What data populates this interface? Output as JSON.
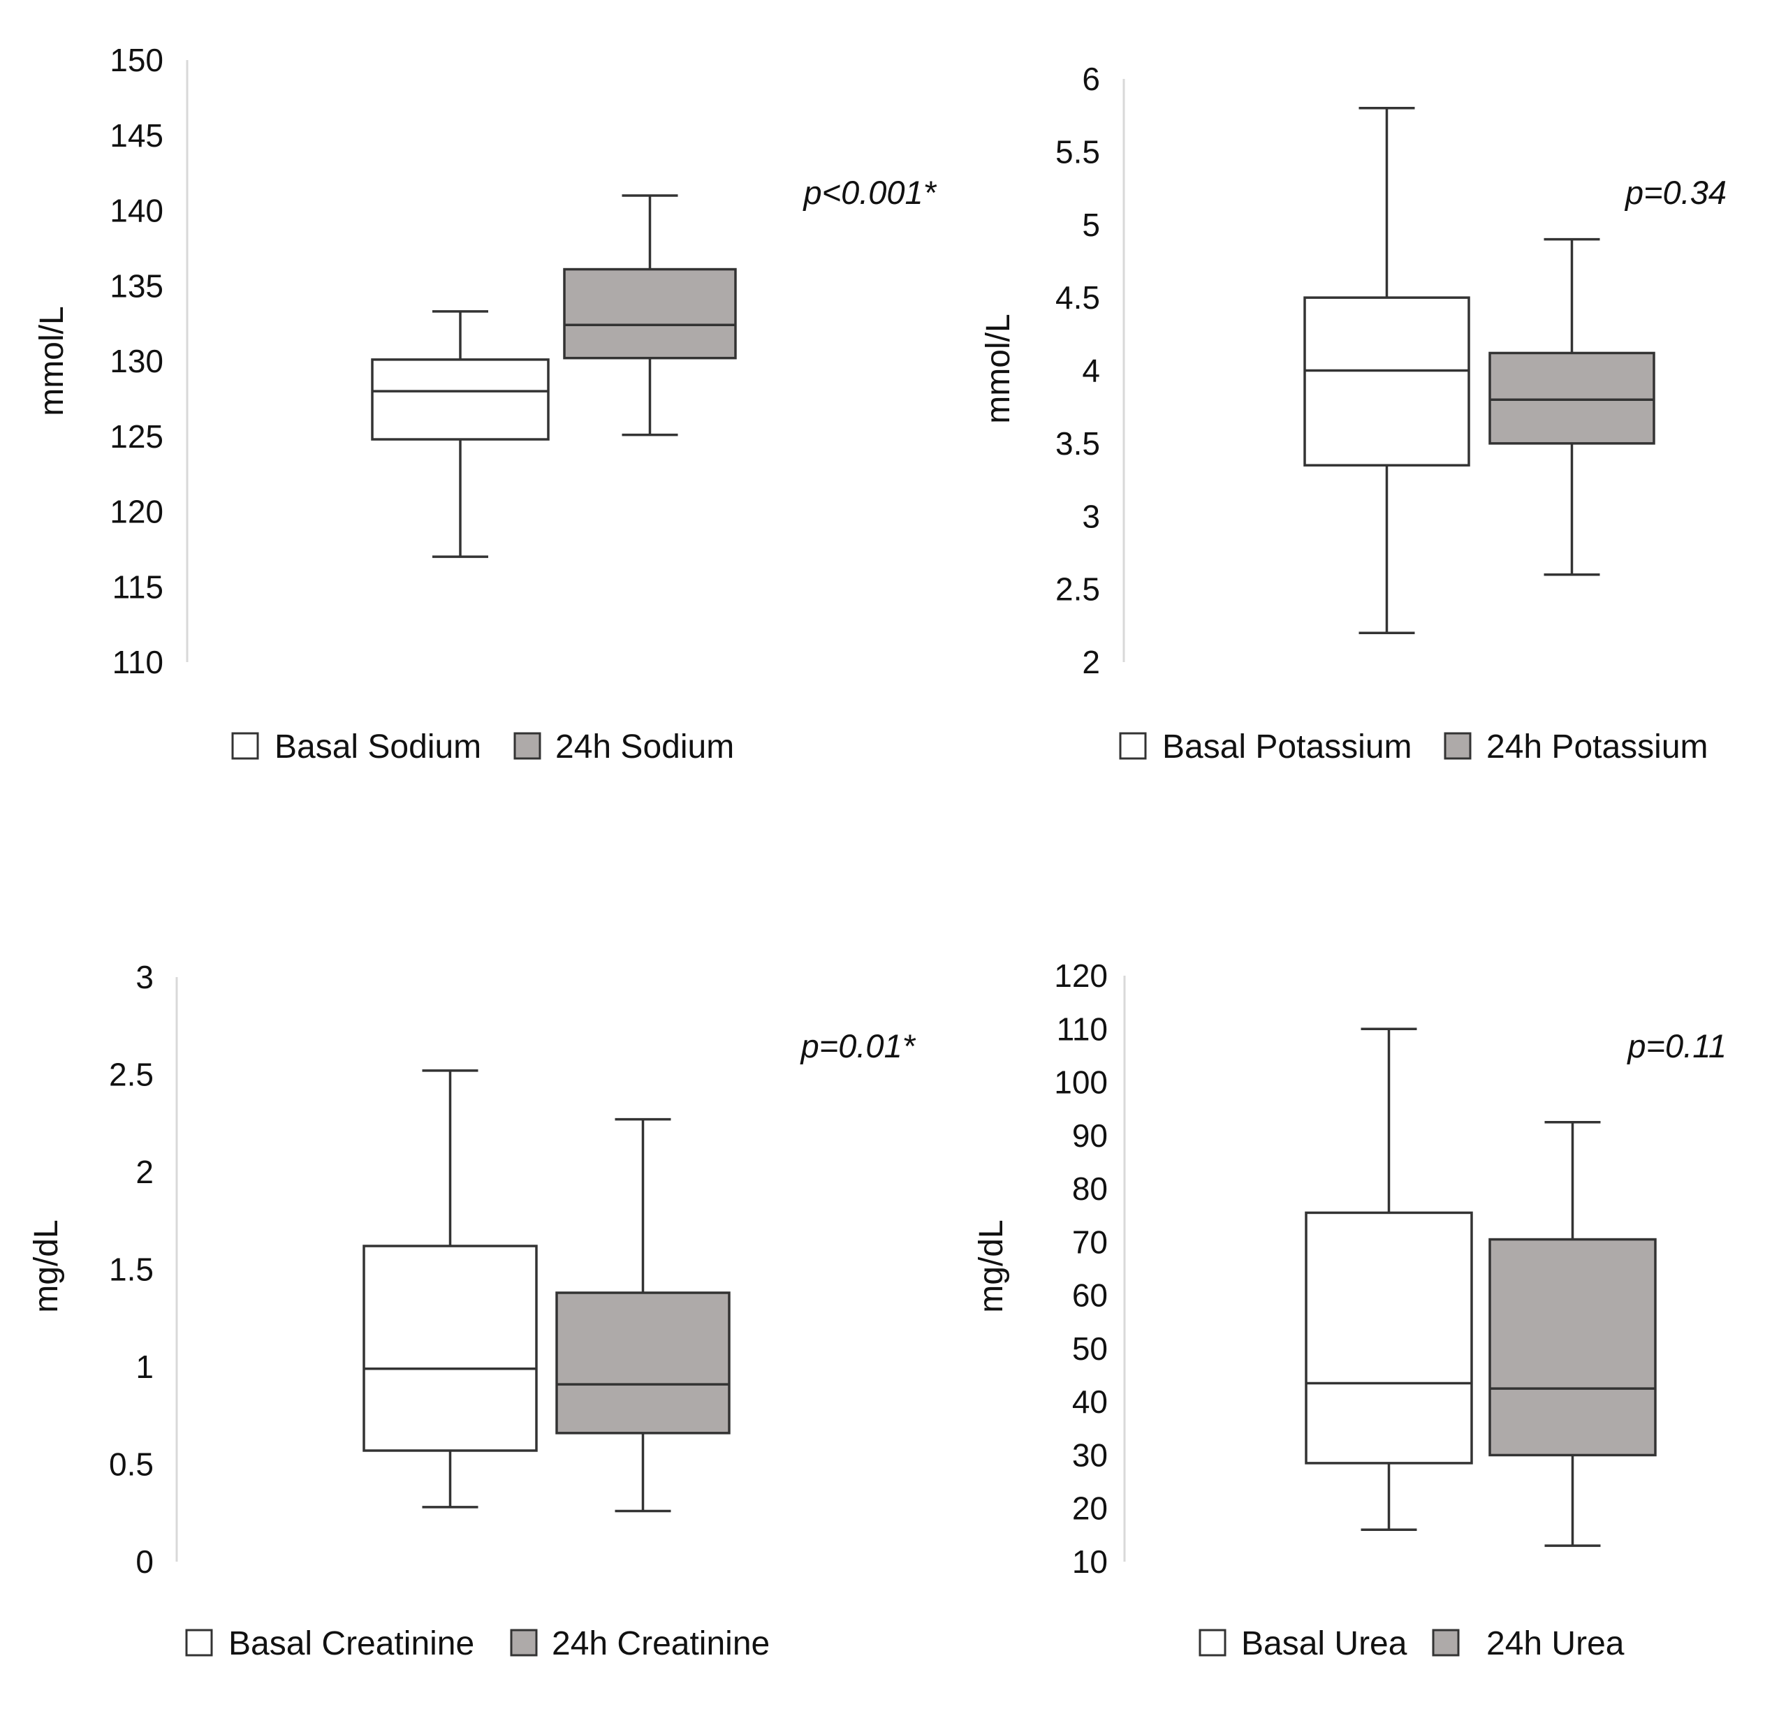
{
  "chart_data": [
    {
      "type": "box",
      "ylabel": "mmol/L",
      "ylim": [
        110,
        150
      ],
      "yticks": [
        "110",
        "115",
        "120",
        "125",
        "130",
        "135",
        "140",
        "145",
        "150"
      ],
      "annotation": "p<0.001*",
      "series": [
        {
          "name": "Basal Sodium",
          "color": "#ffffff",
          "min": 117,
          "q1": 124.8,
          "median": 128,
          "q3": 130.1,
          "max": 133.3
        },
        {
          "name": "24h Sodium",
          "color": "#aeaaa9",
          "min": 125.1,
          "q1": 130.2,
          "median": 132.4,
          "q3": 136.1,
          "max": 141
        }
      ]
    },
    {
      "type": "box",
      "ylabel": "mmol/L",
      "ylim": [
        2,
        6
      ],
      "yticks": [
        "2",
        "2.5",
        "3",
        "3.5",
        "4",
        "4.5",
        "5",
        "5.5",
        "6"
      ],
      "annotation": "p=0.34",
      "series": [
        {
          "name": "Basal Potassium",
          "color": "#ffffff",
          "min": 2.2,
          "q1": 3.35,
          "median": 4.0,
          "q3": 4.5,
          "max": 5.8
        },
        {
          "name": "24h Potassium",
          "color": "#aeaaa9",
          "min": 2.6,
          "q1": 3.5,
          "median": 3.8,
          "q3": 4.12,
          "max": 4.9
        }
      ]
    },
    {
      "type": "box",
      "ylabel": "mg/dL",
      "ylim": [
        0,
        3
      ],
      "yticks": [
        "0",
        "0.5",
        "1",
        "1.5",
        "2",
        "2.5",
        "3"
      ],
      "annotation": "p=0.01*",
      "series": [
        {
          "name": "Basal Creatinine",
          "color": "#ffffff",
          "min": 0.28,
          "q1": 0.57,
          "median": 0.99,
          "q3": 1.62,
          "max": 2.52
        },
        {
          "name": "24h Creatinine",
          "color": "#aeaaa9",
          "min": 0.26,
          "q1": 0.66,
          "median": 0.91,
          "q3": 1.38,
          "max": 2.27
        }
      ]
    },
    {
      "type": "box",
      "ylabel": "mg/dL",
      "ylim": [
        10,
        120
      ],
      "yticks": [
        "10",
        "20",
        "30",
        "40",
        "50",
        "60",
        "70",
        "80",
        "90",
        "100",
        "110",
        "120"
      ],
      "annotation": "p=0.11",
      "series": [
        {
          "name": "Basal Urea",
          "color": "#ffffff",
          "min": 16,
          "q1": 28.5,
          "median": 43.5,
          "q3": 75.5,
          "max": 110
        },
        {
          "name": "24h Urea",
          "color": "#aeaaa9",
          "min": 13,
          "q1": 30,
          "median": 42.5,
          "q3": 70.5,
          "max": 92.5
        }
      ]
    }
  ]
}
